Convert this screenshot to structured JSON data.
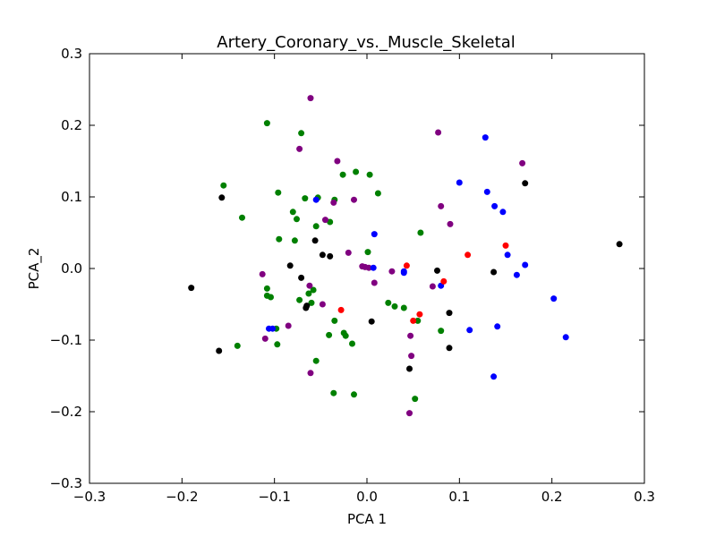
{
  "chart_data": {
    "type": "scatter",
    "title": "Artery_Coronary_vs._Muscle_Skeletal",
    "xlabel": "PCA 1",
    "ylabel": "PCA_2",
    "xlim": [
      -0.3,
      0.3
    ],
    "ylim": [
      -0.3,
      0.3
    ],
    "xticks": [
      -0.3,
      -0.2,
      -0.1,
      0.0,
      0.1,
      0.2,
      0.3
    ],
    "yticks": [
      -0.3,
      -0.2,
      -0.1,
      0.0,
      0.1,
      0.2,
      0.3
    ],
    "xtick_labels": [
      "−0.3",
      "−0.2",
      "−0.1",
      "0.0",
      "0.1",
      "0.2",
      "0.3"
    ],
    "ytick_labels": [
      "−0.3",
      "−0.2",
      "−0.1",
      "0.0",
      "0.1",
      "0.2",
      "0.3"
    ],
    "grid": false,
    "legend": null,
    "series": [
      {
        "name": "green",
        "color": "#008000",
        "points": [
          [
            -0.155,
            0.116
          ],
          [
            -0.135,
            0.071
          ],
          [
            -0.108,
            0.203
          ],
          [
            -0.096,
            0.106
          ],
          [
            -0.071,
            0.189
          ],
          [
            -0.067,
            0.098
          ],
          [
            -0.053,
            0.099
          ],
          [
            -0.04,
            0.065
          ],
          [
            -0.035,
            0.096
          ],
          [
            -0.08,
            0.079
          ],
          [
            -0.076,
            0.069
          ],
          [
            -0.095,
            0.041
          ],
          [
            -0.078,
            0.039
          ],
          [
            -0.055,
            0.059
          ],
          [
            -0.026,
            0.131
          ],
          [
            -0.012,
            0.135
          ],
          [
            0.003,
            0.131
          ],
          [
            0.012,
            0.105
          ],
          [
            0.001,
            0.023
          ],
          [
            0.058,
            0.05
          ],
          [
            -0.108,
            -0.028
          ],
          [
            -0.108,
            -0.038
          ],
          [
            -0.104,
            -0.04
          ],
          [
            -0.073,
            -0.044
          ],
          [
            -0.063,
            -0.035
          ],
          [
            -0.058,
            -0.03
          ],
          [
            -0.06,
            -0.048
          ],
          [
            -0.098,
            -0.084
          ],
          [
            -0.097,
            -0.106
          ],
          [
            -0.14,
            -0.108
          ],
          [
            -0.041,
            -0.093
          ],
          [
            -0.035,
            -0.073
          ],
          [
            -0.025,
            -0.09
          ],
          [
            -0.023,
            -0.094
          ],
          [
            -0.016,
            -0.105
          ],
          [
            -0.055,
            -0.129
          ],
          [
            0.023,
            -0.048
          ],
          [
            0.03,
            -0.053
          ],
          [
            0.04,
            -0.055
          ],
          [
            0.055,
            -0.073
          ],
          [
            0.08,
            -0.087
          ],
          [
            0.052,
            -0.182
          ],
          [
            -0.036,
            -0.174
          ],
          [
            -0.014,
            -0.176
          ]
        ]
      },
      {
        "name": "purple",
        "color": "#800080",
        "points": [
          [
            -0.061,
            0.238
          ],
          [
            -0.073,
            0.167
          ],
          [
            -0.032,
            0.15
          ],
          [
            0.077,
            0.19
          ],
          [
            0.168,
            0.147
          ],
          [
            -0.014,
            0.096
          ],
          [
            -0.036,
            0.092
          ],
          [
            -0.045,
            0.068
          ],
          [
            0.08,
            0.087
          ],
          [
            0.09,
            0.062
          ],
          [
            -0.02,
            0.022
          ],
          [
            -0.113,
            -0.008
          ],
          [
            -0.005,
            0.003
          ],
          [
            -0.002,
            0.002
          ],
          [
            0.002,
            0.001
          ],
          [
            0.008,
            -0.02
          ],
          [
            0.027,
            -0.004
          ],
          [
            0.071,
            -0.025
          ],
          [
            -0.062,
            -0.024
          ],
          [
            -0.048,
            -0.05
          ],
          [
            -0.085,
            -0.08
          ],
          [
            -0.11,
            -0.098
          ],
          [
            0.047,
            -0.094
          ],
          [
            0.048,
            -0.122
          ],
          [
            -0.061,
            -0.146
          ],
          [
            0.046,
            -0.202
          ]
        ]
      },
      {
        "name": "blue",
        "color": "#0000ff",
        "points": [
          [
            0.128,
            0.183
          ],
          [
            0.1,
            0.12
          ],
          [
            0.13,
            0.107
          ],
          [
            0.138,
            0.087
          ],
          [
            0.147,
            0.079
          ],
          [
            0.008,
            0.048
          ],
          [
            -0.055,
            0.096
          ],
          [
            0.152,
            0.019
          ],
          [
            0.171,
            0.005
          ],
          [
            0.162,
            -0.009
          ],
          [
            0.007,
            0.001
          ],
          [
            0.04,
            -0.004
          ],
          [
            0.04,
            -0.006
          ],
          [
            0.08,
            -0.024
          ],
          [
            0.202,
            -0.042
          ],
          [
            0.215,
            -0.096
          ],
          [
            0.111,
            -0.086
          ],
          [
            0.141,
            -0.081
          ],
          [
            0.137,
            -0.151
          ],
          [
            -0.106,
            -0.084
          ],
          [
            -0.102,
            -0.084
          ]
        ]
      },
      {
        "name": "black",
        "color": "#000000",
        "points": [
          [
            -0.157,
            0.099
          ],
          [
            0.171,
            0.119
          ],
          [
            0.273,
            0.034
          ],
          [
            -0.056,
            0.039
          ],
          [
            -0.048,
            0.019
          ],
          [
            -0.04,
            0.017
          ],
          [
            -0.083,
            0.004
          ],
          [
            -0.071,
            -0.013
          ],
          [
            -0.19,
            -0.027
          ],
          [
            0.076,
            -0.003
          ],
          [
            0.137,
            -0.005
          ],
          [
            -0.065,
            -0.052
          ],
          [
            -0.066,
            -0.055
          ],
          [
            0.005,
            -0.074
          ],
          [
            0.089,
            -0.062
          ],
          [
            0.089,
            -0.111
          ],
          [
            -0.16,
            -0.115
          ],
          [
            0.046,
            -0.14
          ]
        ]
      },
      {
        "name": "red",
        "color": "#ff0000",
        "points": [
          [
            0.15,
            0.032
          ],
          [
            0.109,
            0.019
          ],
          [
            0.043,
            0.004
          ],
          [
            0.083,
            -0.018
          ],
          [
            -0.028,
            -0.058
          ],
          [
            0.057,
            -0.064
          ],
          [
            0.05,
            -0.073
          ]
        ]
      }
    ]
  }
}
